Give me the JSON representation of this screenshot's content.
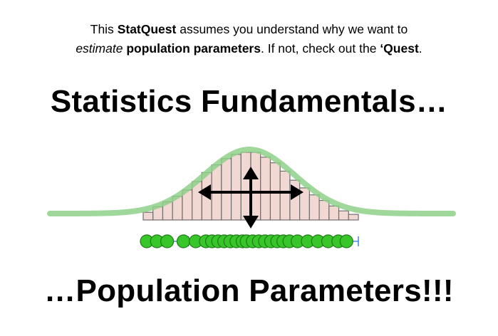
{
  "intro": {
    "line1_prefix": "This ",
    "line1_brand": "StatQuest",
    "line1_suffix": " assumes you understand why we want to",
    "line2_italic": "estimate",
    "line2_bold": " population parameters",
    "line2_middle": ". If not, check out the ",
    "line2_quest": "‘Quest",
    "line2_end": "."
  },
  "headline_top": "Statistics Fundamentals…",
  "headline_bottom": "…Population Parameters!!!",
  "figure": {
    "histogram_bar_heights": [
      0.11,
      0.19,
      0.26,
      0.34,
      0.43,
      0.55,
      0.68,
      0.79,
      0.88,
      0.94,
      0.97,
      0.97,
      0.9,
      0.82,
      0.7,
      0.57,
      0.46,
      0.36,
      0.28,
      0.2,
      0.13,
      0.08
    ],
    "sample_points": [
      0.0,
      0.05,
      0.1,
      0.18,
      0.24,
      0.29,
      0.32,
      0.35,
      0.38,
      0.41,
      0.44,
      0.47,
      0.49,
      0.52,
      0.55,
      0.58,
      0.61,
      0.64,
      0.67,
      0.7,
      0.74,
      0.79,
      0.84,
      0.89,
      0.94,
      0.98
    ],
    "colors": {
      "curve": "#8fd08a",
      "bar_fill": "#f2d8d2",
      "bar_stroke": "#6f6f6f",
      "point_fill": "#39c62a",
      "point_stroke": "#1f7a16",
      "axis_tick": "#2a6fdc",
      "arrow": "#000000"
    }
  }
}
